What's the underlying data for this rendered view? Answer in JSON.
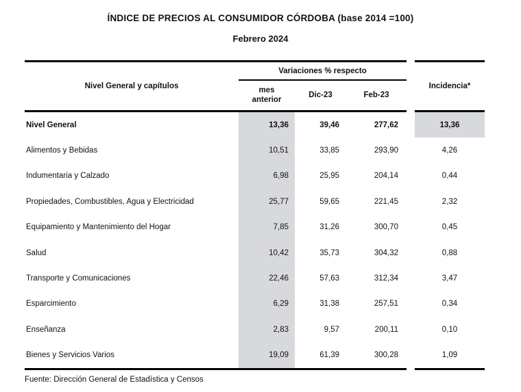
{
  "title": {
    "line1": "ÍNDICE DE PRECIOS AL CONSUMIDOR CÓRDOBA (base 2014 =100)",
    "line2": "Febrero 2024"
  },
  "table": {
    "row_header": "Nivel General y capítulos",
    "col_group_header": "Variaciones % respecto",
    "columns": [
      "mes anterior",
      "Dic-23",
      "Feb-23"
    ],
    "incidencia_header": "Incidencia*",
    "rows": [
      {
        "label": "Nivel General",
        "mes_anterior": "13,36",
        "dic23": "39,46",
        "feb23": "277,62",
        "incidencia": "13,36"
      },
      {
        "label": "Alimentos y Bebidas",
        "mes_anterior": "10,51",
        "dic23": "33,85",
        "feb23": "293,90",
        "incidencia": "4,26"
      },
      {
        "label": "Indumentaria y Calzado",
        "mes_anterior": "6,98",
        "dic23": "25,95",
        "feb23": "204,14",
        "incidencia": "0,44"
      },
      {
        "label": "Propiedades, Combustibles, Agua y Electricidad",
        "mes_anterior": "25,77",
        "dic23": "59,65",
        "feb23": "221,45",
        "incidencia": "2,32"
      },
      {
        "label": "Equipamiento y Mantenimiento del Hogar",
        "mes_anterior": "7,85",
        "dic23": "31,26",
        "feb23": "300,70",
        "incidencia": "0,45"
      },
      {
        "label": "Salud",
        "mes_anterior": "10,42",
        "dic23": "35,73",
        "feb23": "304,32",
        "incidencia": "0,88"
      },
      {
        "label": "Transporte y Comunicaciones",
        "mes_anterior": "22,46",
        "dic23": "57,63",
        "feb23": "312,34",
        "incidencia": "3,47"
      },
      {
        "label": "Esparcimiento",
        "mes_anterior": "6,29",
        "dic23": "31,38",
        "feb23": "257,51",
        "incidencia": "0,34"
      },
      {
        "label": "Enseñanza",
        "mes_anterior": "2,83",
        "dic23": "9,57",
        "feb23": "200,11",
        "incidencia": "0,10"
      },
      {
        "label": "Bienes y Servicios Varios",
        "mes_anterior": "19,09",
        "dic23": "61,39",
        "feb23": "300,28",
        "incidencia": "1,09"
      }
    ]
  },
  "footer": {
    "source": "Fuente: Dirección General de Estadística y Censos"
  },
  "colors": {
    "shading": "#d7d9dc",
    "border": "#000000",
    "text": "#111111",
    "background": "#ffffff"
  }
}
